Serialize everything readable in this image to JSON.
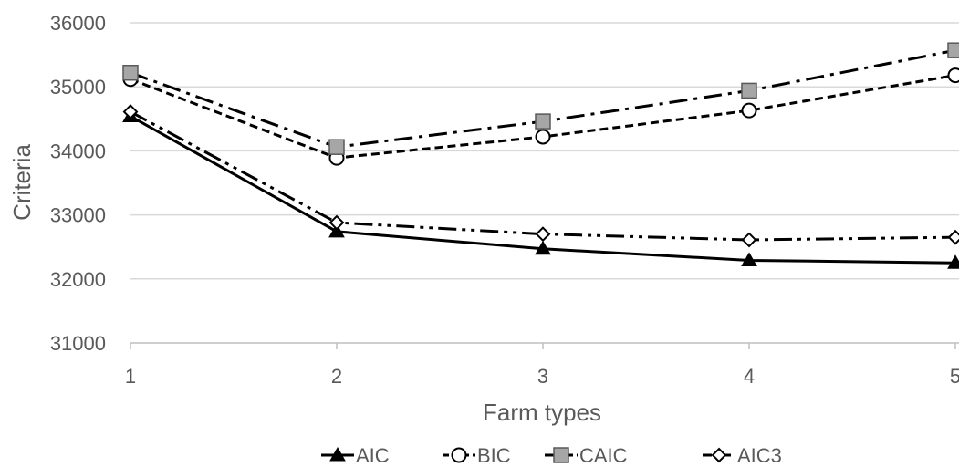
{
  "chart_data": {
    "type": "line",
    "title": "",
    "xlabel": "Farm types",
    "ylabel": "Criteria",
    "x": [
      1,
      2,
      3,
      4,
      5
    ],
    "x_tick_labels": [
      "1",
      "2",
      "3",
      "4",
      "5"
    ],
    "ylim": [
      31000,
      36000
    ],
    "y_ticks": [
      31000,
      32000,
      33000,
      34000,
      35000,
      36000
    ],
    "grid": "horizontal",
    "legend_position": "bottom",
    "series": [
      {
        "name": "AIC",
        "values": [
          34540,
          32740,
          32470,
          32290,
          32250
        ],
        "marker": "filled-triangle",
        "line_style": "solid",
        "color": "#000000"
      },
      {
        "name": "BIC",
        "values": [
          35120,
          33890,
          34220,
          34630,
          35180
        ],
        "marker": "open-circle",
        "line_style": "dashed",
        "color": "#000000"
      },
      {
        "name": "CAIC",
        "values": [
          35220,
          34060,
          34460,
          34940,
          35570
        ],
        "marker": "gray-square",
        "line_style": "dash-dot",
        "color": "#000000"
      },
      {
        "name": "AIC3",
        "values": [
          34610,
          32880,
          32700,
          32610,
          32650
        ],
        "marker": "open-diamond",
        "line_style": "dash-dot-dot",
        "color": "#000000"
      }
    ]
  },
  "colors": {
    "grid": "#d9d9d9",
    "axis": "#bfbfbf",
    "text": "#595959",
    "square_fill": "#a6a6a6"
  }
}
